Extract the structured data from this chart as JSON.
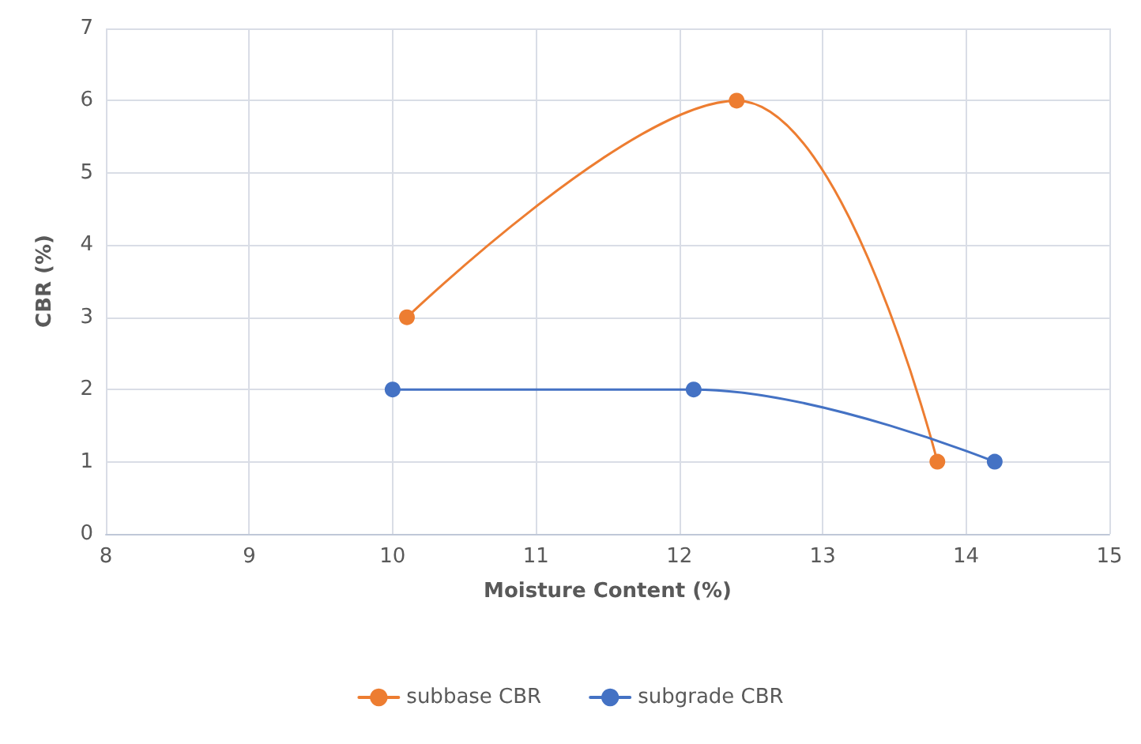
{
  "chart_data": {
    "type": "line",
    "xlabel": "Moisture Content (%)",
    "ylabel": "CBR (%)",
    "series": [
      {
        "name": "subbase CBR",
        "color": "#ed7d31",
        "x": [
          10.1,
          12.4,
          13.8
        ],
        "values": [
          3,
          6,
          1
        ]
      },
      {
        "name": "subgrade CBR",
        "color": "#4472c4",
        "x": [
          10,
          12.1,
          14.2
        ],
        "values": [
          2,
          2,
          1
        ]
      }
    ],
    "xlim": [
      8,
      15
    ],
    "xticks": [
      8,
      9,
      10,
      11,
      12,
      13,
      14,
      15
    ],
    "ylim": [
      0,
      7
    ],
    "yticks": [
      0,
      1,
      2,
      3,
      4,
      5,
      6,
      7
    ],
    "grid": true,
    "legend": "bottom",
    "marker": "circle",
    "line_style": "solid"
  }
}
